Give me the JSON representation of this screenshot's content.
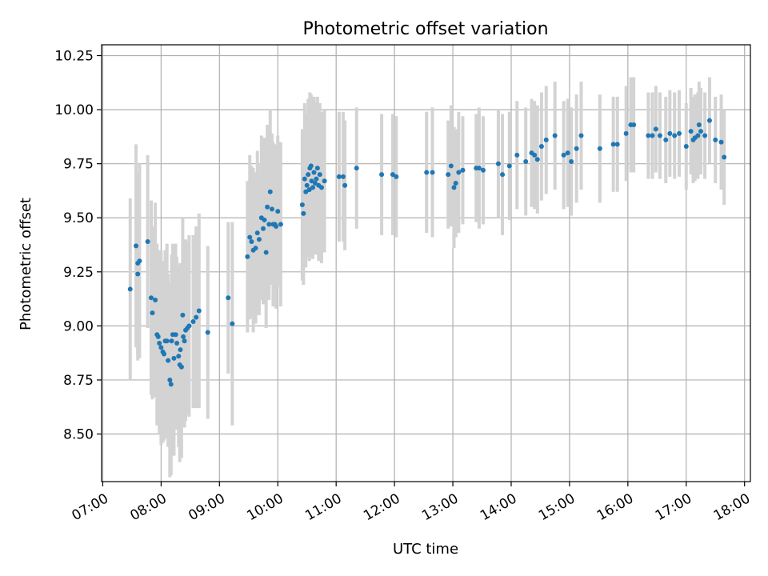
{
  "chart_data": {
    "type": "scatter",
    "title": "Photometric offset variation",
    "xlabel": "UTC time",
    "ylabel": "Photometric offset",
    "x_unit": "hours",
    "xlim": [
      6.98,
      18.1
    ],
    "ylim": [
      8.28,
      10.3
    ],
    "x_ticks": [
      7,
      8,
      9,
      10,
      11,
      12,
      13,
      14,
      15,
      16,
      17,
      18
    ],
    "x_tick_labels": [
      "07:00",
      "08:00",
      "09:00",
      "10:00",
      "11:00",
      "12:00",
      "13:00",
      "14:00",
      "15:00",
      "16:00",
      "17:00",
      "18:00"
    ],
    "y_ticks": [
      8.5,
      8.75,
      9.0,
      9.25,
      9.5,
      9.75,
      10.0,
      10.25
    ],
    "y_tick_labels": [
      "8.50",
      "8.75",
      "9.00",
      "9.25",
      "9.50",
      "9.75",
      "10.00",
      "10.25"
    ],
    "grid": true,
    "colors": {
      "points": "#1f77b4",
      "errorbars": "#d3d3d3",
      "grid": "#b0b0b0"
    },
    "points": [
      [
        7.47,
        9.17,
        0.42
      ],
      [
        7.57,
        9.37,
        0.47
      ],
      [
        7.6,
        9.29,
        0.42
      ],
      [
        7.63,
        9.3,
        0.45
      ],
      [
        7.6,
        9.24,
        0.4
      ],
      [
        7.77,
        9.39,
        0.4
      ],
      [
        7.83,
        9.13,
        0.45
      ],
      [
        7.85,
        9.06,
        0.4
      ],
      [
        7.9,
        9.12,
        0.45
      ],
      [
        7.93,
        8.96,
        0.42
      ],
      [
        7.95,
        8.95,
        0.4
      ],
      [
        7.97,
        8.92,
        0.42
      ],
      [
        8.0,
        8.9,
        0.45
      ],
      [
        8.03,
        8.88,
        0.42
      ],
      [
        8.05,
        8.87,
        0.4
      ],
      [
        8.07,
        8.93,
        0.42
      ],
      [
        8.1,
        8.93,
        0.45
      ],
      [
        8.12,
        8.84,
        0.4
      ],
      [
        8.15,
        8.75,
        0.45
      ],
      [
        8.17,
        8.73,
        0.42
      ],
      [
        8.18,
        8.93,
        0.4
      ],
      [
        8.2,
        8.96,
        0.42
      ],
      [
        8.22,
        8.85,
        0.45
      ],
      [
        8.25,
        8.96,
        0.42
      ],
      [
        8.27,
        8.92,
        0.4
      ],
      [
        8.3,
        8.86,
        0.42
      ],
      [
        8.32,
        8.82,
        0.45
      ],
      [
        8.33,
        8.89,
        0.4
      ],
      [
        8.35,
        8.81,
        0.42
      ],
      [
        8.37,
        9.05,
        0.45
      ],
      [
        8.38,
        8.95,
        0.42
      ],
      [
        8.4,
        8.93,
        0.4
      ],
      [
        8.42,
        8.98,
        0.42
      ],
      [
        8.45,
        8.99,
        0.4
      ],
      [
        8.48,
        9.0,
        0.42
      ],
      [
        8.55,
        9.02,
        0.4
      ],
      [
        8.6,
        9.04,
        0.42
      ],
      [
        8.65,
        9.07,
        0.45
      ],
      [
        8.8,
        8.97,
        0.4
      ],
      [
        9.15,
        9.13,
        0.35
      ],
      [
        9.22,
        9.01,
        0.47
      ],
      [
        9.48,
        9.32,
        0.35
      ],
      [
        9.52,
        9.41,
        0.38
      ],
      [
        9.55,
        9.39,
        0.35
      ],
      [
        9.58,
        9.35,
        0.38
      ],
      [
        9.62,
        9.36,
        0.35
      ],
      [
        9.65,
        9.43,
        0.38
      ],
      [
        9.68,
        9.4,
        0.35
      ],
      [
        9.72,
        9.5,
        0.38
      ],
      [
        9.75,
        9.45,
        0.35
      ],
      [
        9.77,
        9.49,
        0.38
      ],
      [
        9.8,
        9.34,
        0.35
      ],
      [
        9.82,
        9.55,
        0.38
      ],
      [
        9.85,
        9.47,
        0.35
      ],
      [
        9.87,
        9.62,
        0.38
      ],
      [
        9.9,
        9.54,
        0.35
      ],
      [
        9.92,
        9.47,
        0.38
      ],
      [
        9.95,
        9.47,
        0.35
      ],
      [
        9.97,
        9.46,
        0.38
      ],
      [
        10.0,
        9.53,
        0.35
      ],
      [
        10.05,
        9.47,
        0.38
      ],
      [
        10.42,
        9.56,
        0.35
      ],
      [
        10.44,
        9.52,
        0.33
      ],
      [
        10.46,
        9.68,
        0.35
      ],
      [
        10.48,
        9.62,
        0.35
      ],
      [
        10.5,
        9.65,
        0.33
      ],
      [
        10.52,
        9.7,
        0.35
      ],
      [
        10.54,
        9.63,
        0.33
      ],
      [
        10.55,
        9.73,
        0.35
      ],
      [
        10.57,
        9.74,
        0.33
      ],
      [
        10.58,
        9.67,
        0.35
      ],
      [
        10.6,
        9.64,
        0.33
      ],
      [
        10.62,
        9.71,
        0.35
      ],
      [
        10.64,
        9.66,
        0.33
      ],
      [
        10.66,
        9.68,
        0.35
      ],
      [
        10.68,
        9.73,
        0.33
      ],
      [
        10.7,
        9.65,
        0.35
      ],
      [
        10.72,
        9.7,
        0.33
      ],
      [
        10.75,
        9.64,
        0.35
      ],
      [
        10.8,
        9.67,
        0.33
      ],
      [
        11.05,
        9.69,
        0.3
      ],
      [
        11.12,
        9.69,
        0.3
      ],
      [
        11.15,
        9.65,
        0.3
      ],
      [
        11.35,
        9.73,
        0.28
      ],
      [
        11.78,
        9.7,
        0.28
      ],
      [
        11.97,
        9.7,
        0.28
      ],
      [
        12.03,
        9.69,
        0.28
      ],
      [
        12.55,
        9.71,
        0.28
      ],
      [
        12.65,
        9.71,
        0.3
      ],
      [
        12.92,
        9.7,
        0.25
      ],
      [
        12.97,
        9.74,
        0.28
      ],
      [
        13.02,
        9.64,
        0.28
      ],
      [
        13.05,
        9.66,
        0.25
      ],
      [
        13.1,
        9.71,
        0.28
      ],
      [
        13.17,
        9.72,
        0.25
      ],
      [
        13.4,
        9.73,
        0.25
      ],
      [
        13.45,
        9.73,
        0.28
      ],
      [
        13.52,
        9.72,
        0.25
      ],
      [
        13.78,
        9.75,
        0.25
      ],
      [
        13.85,
        9.7,
        0.28
      ],
      [
        13.97,
        9.74,
        0.25
      ],
      [
        14.1,
        9.79,
        0.25
      ],
      [
        14.25,
        9.76,
        0.25
      ],
      [
        14.35,
        9.8,
        0.25
      ],
      [
        14.4,
        9.79,
        0.25
      ],
      [
        14.45,
        9.77,
        0.25
      ],
      [
        14.52,
        9.83,
        0.25
      ],
      [
        14.6,
        9.86,
        0.25
      ],
      [
        14.75,
        9.88,
        0.25
      ],
      [
        14.9,
        9.79,
        0.25
      ],
      [
        14.97,
        9.8,
        0.25
      ],
      [
        15.03,
        9.76,
        0.25
      ],
      [
        15.12,
        9.82,
        0.25
      ],
      [
        15.2,
        9.88,
        0.25
      ],
      [
        15.52,
        9.82,
        0.25
      ],
      [
        15.75,
        9.84,
        0.22
      ],
      [
        15.82,
        9.84,
        0.22
      ],
      [
        15.97,
        9.89,
        0.22
      ],
      [
        16.05,
        9.93,
        0.22
      ],
      [
        16.1,
        9.93,
        0.22
      ],
      [
        16.35,
        9.88,
        0.2
      ],
      [
        16.42,
        9.88,
        0.2
      ],
      [
        16.48,
        9.91,
        0.2
      ],
      [
        16.55,
        9.88,
        0.2
      ],
      [
        16.65,
        9.86,
        0.2
      ],
      [
        16.72,
        9.89,
        0.2
      ],
      [
        16.8,
        9.88,
        0.2
      ],
      [
        16.88,
        9.89,
        0.2
      ],
      [
        17.0,
        9.83,
        0.2
      ],
      [
        17.08,
        9.9,
        0.2
      ],
      [
        17.12,
        9.86,
        0.2
      ],
      [
        17.15,
        9.87,
        0.2
      ],
      [
        17.2,
        9.88,
        0.2
      ],
      [
        17.22,
        9.93,
        0.2
      ],
      [
        17.25,
        9.9,
        0.2
      ],
      [
        17.32,
        9.88,
        0.2
      ],
      [
        17.4,
        9.95,
        0.2
      ],
      [
        17.5,
        9.86,
        0.2
      ],
      [
        17.6,
        9.85,
        0.22
      ],
      [
        17.65,
        9.78,
        0.22
      ]
    ]
  }
}
